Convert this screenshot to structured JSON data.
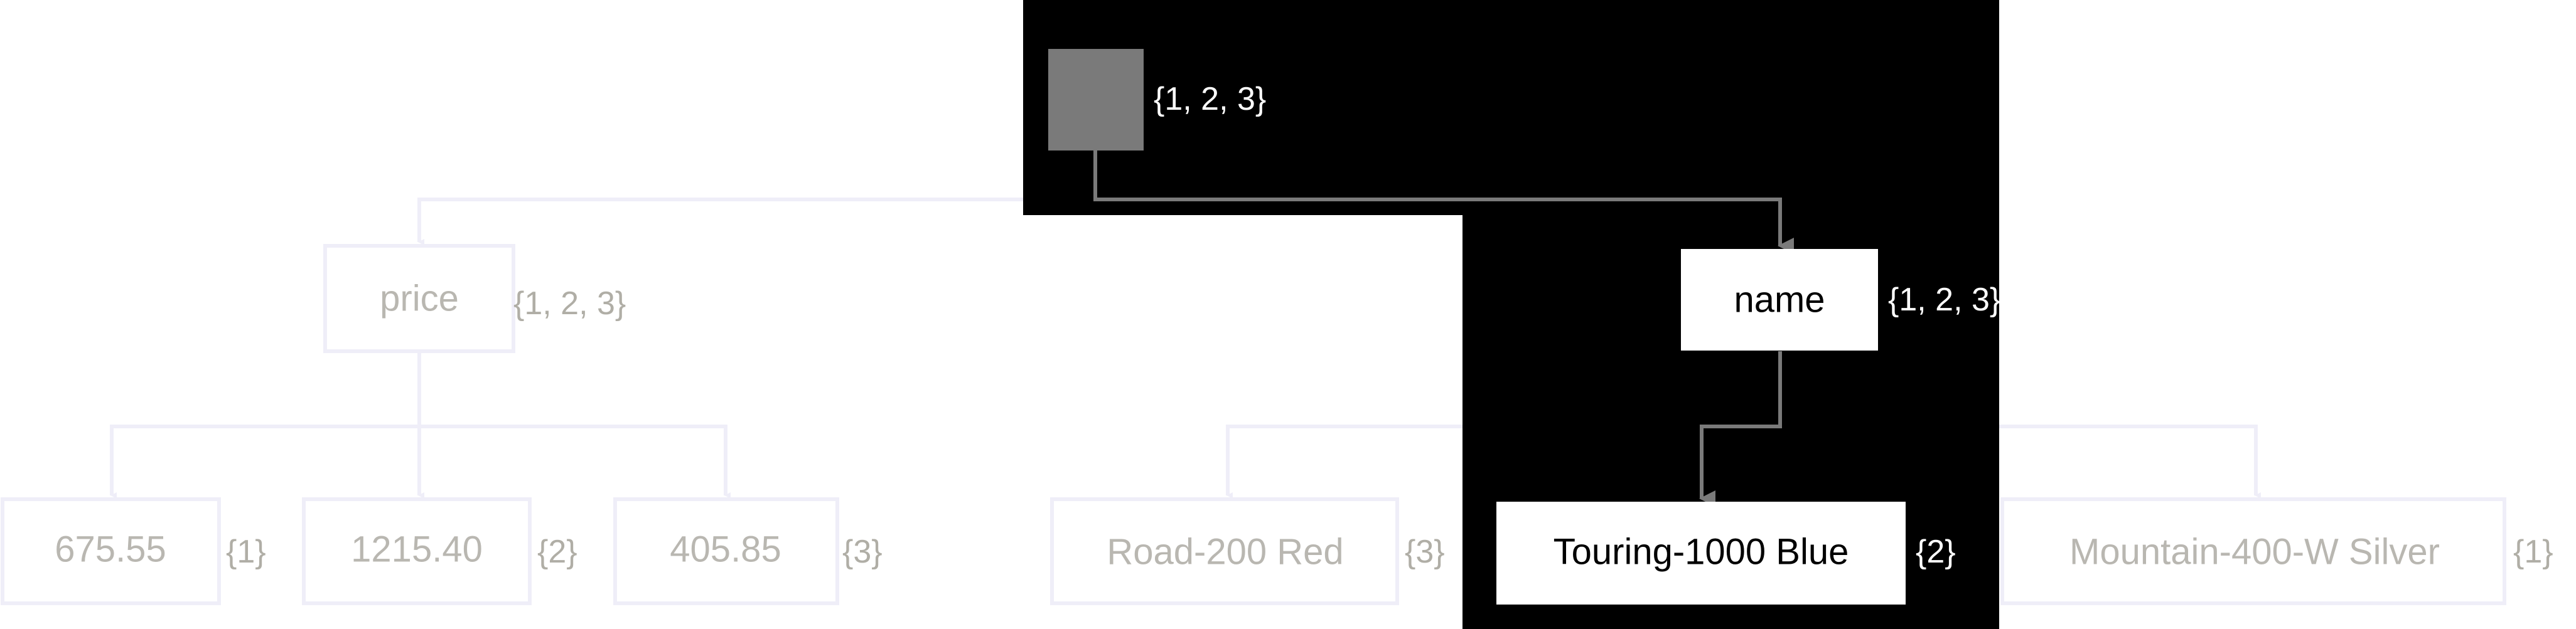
{
  "colors": {
    "focus_background": "#000000",
    "focus_node_fill": "#ffffff",
    "root_fill": "#7a7a7a",
    "faded_border": "#efeef8",
    "faded_text": "#b9b7b1",
    "connector": "#7a7a7a"
  },
  "root": {
    "set": "{1, 2, 3}"
  },
  "nodes": {
    "price": {
      "label": "price",
      "set": "{1, 2, 3}"
    },
    "name": {
      "label": "name",
      "set": "{1, 2, 3}"
    },
    "p1": {
      "label": "675.55",
      "set": "{1}"
    },
    "p2": {
      "label": "1215.40",
      "set": "{2}"
    },
    "p3": {
      "label": "405.85",
      "set": "{3}"
    },
    "n1": {
      "label": "Road-200 Red",
      "set": "{3}"
    },
    "n2": {
      "label": "Touring-1000 Blue",
      "set": "{2}"
    },
    "n3": {
      "label": "Mountain-400-W Silver",
      "set": "{1}"
    }
  }
}
